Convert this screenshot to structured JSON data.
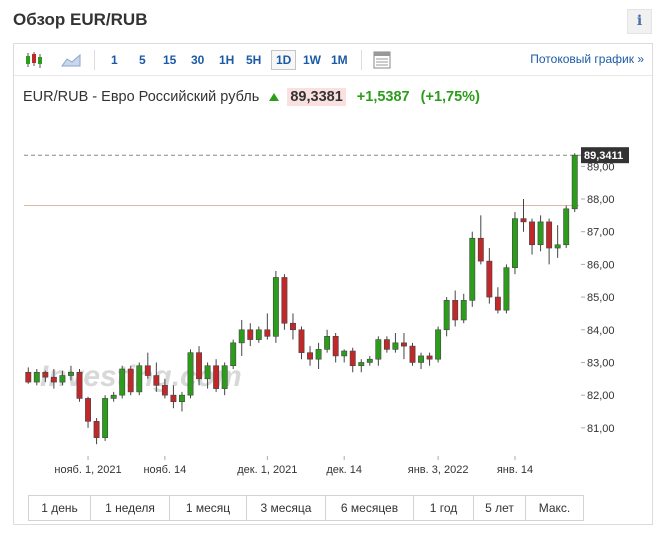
{
  "header": {
    "title": "Обзор EUR/RUB",
    "info_icon": "i"
  },
  "toolbar": {
    "chart_type_icons": [
      "candlestick-icon",
      "area-chart-icon"
    ],
    "intervals": [
      "1",
      "5",
      "15",
      "30",
      "1H",
      "5H",
      "1D",
      "1W",
      "1M"
    ],
    "active_interval": "1D",
    "table_icon": "table-view-icon",
    "streaming_link": "Потоковый график »"
  },
  "quote": {
    "name": "EUR/RUB - Евро Российский рубль",
    "price": "89,3381",
    "change": "+1,5387",
    "change_pct": "(+1,75%)",
    "direction": "up"
  },
  "colors": {
    "up": "#2c9d1b",
    "down": "#c0282a",
    "link": "#1b5aa6"
  },
  "chart_data": {
    "type": "candlestick",
    "y_ticks": [
      "81,00",
      "82,00",
      "83,00",
      "84,00",
      "85,00",
      "86,00",
      "87,00",
      "88,00",
      "89,00"
    ],
    "ylim": [
      80.2,
      90.6
    ],
    "x_ticks": [
      {
        "label": "нояб. 1, 2021",
        "index": 7
      },
      {
        "label": "нояб. 14",
        "index": 16
      },
      {
        "label": "дек. 1, 2021",
        "index": 28
      },
      {
        "label": "дек. 14",
        "index": 37
      },
      {
        "label": "янв. 3, 2022",
        "index": 48
      },
      {
        "label": "янв. 14",
        "index": 57
      }
    ],
    "last_price_label": "89,3411",
    "last_price": 89.34,
    "reference_level": 87.8,
    "watermark": "Investing.com",
    "candles": [
      [
        82.7,
        82.85,
        82.35,
        82.4
      ],
      [
        82.4,
        82.8,
        82.3,
        82.7
      ],
      [
        82.7,
        82.75,
        82.4,
        82.55
      ],
      [
        82.55,
        82.8,
        82.2,
        82.4
      ],
      [
        82.4,
        82.75,
        82.3,
        82.6
      ],
      [
        82.6,
        82.9,
        82.45,
        82.7
      ],
      [
        82.7,
        82.8,
        81.8,
        81.9
      ],
      [
        81.9,
        81.95,
        81.0,
        81.2
      ],
      [
        81.2,
        81.3,
        80.5,
        80.7
      ],
      [
        80.7,
        82.0,
        80.6,
        81.9
      ],
      [
        81.9,
        82.1,
        81.8,
        82.0
      ],
      [
        82.0,
        82.9,
        81.9,
        82.8
      ],
      [
        82.8,
        82.9,
        82.0,
        82.1
      ],
      [
        82.1,
        83.0,
        82.0,
        82.9
      ],
      [
        82.9,
        83.3,
        82.5,
        82.6
      ],
      [
        82.6,
        83.0,
        82.1,
        82.3
      ],
      [
        82.3,
        82.5,
        81.9,
        82.0
      ],
      [
        82.0,
        82.3,
        81.6,
        81.8
      ],
      [
        81.8,
        82.1,
        81.5,
        82.0
      ],
      [
        82.0,
        83.4,
        81.9,
        83.3
      ],
      [
        83.3,
        83.5,
        82.3,
        82.5
      ],
      [
        82.5,
        83.0,
        82.2,
        82.9
      ],
      [
        82.9,
        83.1,
        82.1,
        82.2
      ],
      [
        82.2,
        83.0,
        82.0,
        82.9
      ],
      [
        82.9,
        83.7,
        82.8,
        83.6
      ],
      [
        83.6,
        84.3,
        83.2,
        84.0
      ],
      [
        84.0,
        84.2,
        83.5,
        83.7
      ],
      [
        83.7,
        84.1,
        83.6,
        84.0
      ],
      [
        84.0,
        84.5,
        83.7,
        83.8
      ],
      [
        83.8,
        85.8,
        83.6,
        85.6
      ],
      [
        85.6,
        85.7,
        84.0,
        84.2
      ],
      [
        84.2,
        84.5,
        83.7,
        84.0
      ],
      [
        84.0,
        84.1,
        83.1,
        83.3
      ],
      [
        83.3,
        83.5,
        82.9,
        83.1
      ],
      [
        83.1,
        83.6,
        82.8,
        83.4
      ],
      [
        83.4,
        84.0,
        83.3,
        83.8
      ],
      [
        83.8,
        83.9,
        83.0,
        83.2
      ],
      [
        83.2,
        83.4,
        83.0,
        83.35
      ],
      [
        83.35,
        83.45,
        82.7,
        82.9
      ],
      [
        82.9,
        83.1,
        82.7,
        83.0
      ],
      [
        83.0,
        83.2,
        82.9,
        83.1
      ],
      [
        83.1,
        83.8,
        82.9,
        83.7
      ],
      [
        83.7,
        83.8,
        83.3,
        83.4
      ],
      [
        83.4,
        83.9,
        83.3,
        83.6
      ],
      [
        83.6,
        83.9,
        83.1,
        83.5
      ],
      [
        83.5,
        83.6,
        82.9,
        83.0
      ],
      [
        83.0,
        83.3,
        82.8,
        83.2
      ],
      [
        83.2,
        83.3,
        82.9,
        83.1
      ],
      [
        83.1,
        84.1,
        83.0,
        84.0
      ],
      [
        84.0,
        85.0,
        83.8,
        84.9
      ],
      [
        84.9,
        85.2,
        84.1,
        84.3
      ],
      [
        84.3,
        85.1,
        84.2,
        84.9
      ],
      [
        84.9,
        87.0,
        84.7,
        86.8
      ],
      [
        86.8,
        87.5,
        86.0,
        86.1
      ],
      [
        86.1,
        86.5,
        84.8,
        85.0
      ],
      [
        85.0,
        85.3,
        84.5,
        84.6
      ],
      [
        84.6,
        86.0,
        84.5,
        85.9
      ],
      [
        85.9,
        87.6,
        85.7,
        87.4
      ],
      [
        87.4,
        88.0,
        87.0,
        87.3
      ],
      [
        87.3,
        87.4,
        86.3,
        86.6
      ],
      [
        86.6,
        87.5,
        86.4,
        87.3
      ],
      [
        87.3,
        87.4,
        86.0,
        86.5
      ],
      [
        86.5,
        87.2,
        86.2,
        86.6
      ],
      [
        86.6,
        87.8,
        86.5,
        87.7
      ],
      [
        87.7,
        89.4,
        87.6,
        89.34
      ]
    ]
  },
  "periods": [
    "1 день",
    "1 неделя",
    "1 месяц",
    "3 месяца",
    "6 месяцев",
    "1 год",
    "5 лет",
    "Макс."
  ]
}
